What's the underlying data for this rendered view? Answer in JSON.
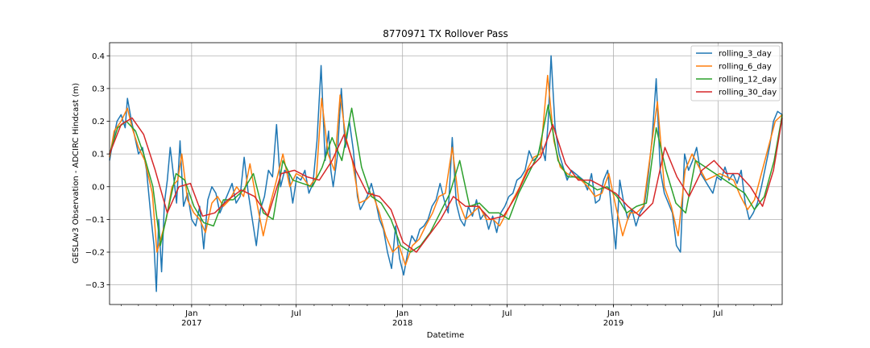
{
  "chart_data": {
    "type": "line",
    "title": "8770971 TX Rollover Pass",
    "xlabel": "Datetime",
    "ylabel": "GESLAv3 Observation - ADCIRC Hindcast (m)",
    "x_range": [
      "2016-08-12",
      "2019-10-20"
    ],
    "ylim": [
      -0.36,
      0.44
    ],
    "y_ticks": [
      -0.3,
      -0.2,
      -0.1,
      0.0,
      0.1,
      0.2,
      0.3,
      0.4
    ],
    "y_tick_labels": [
      "−0.3",
      "−0.2",
      "−0.1",
      "0.0",
      "0.1",
      "0.2",
      "0.3",
      "0.4"
    ],
    "x_major_ticks": [
      {
        "date": "2017-01-01",
        "label": "Jan",
        "year": "2017"
      },
      {
        "date": "2017-07-01",
        "label": "Jul",
        "year": ""
      },
      {
        "date": "2018-01-01",
        "label": "Jan",
        "year": "2018"
      },
      {
        "date": "2018-07-01",
        "label": "Jul",
        "year": ""
      },
      {
        "date": "2019-01-01",
        "label": "Jan",
        "year": "2019"
      },
      {
        "date": "2019-07-01",
        "label": "Jul",
        "year": ""
      }
    ],
    "grid": true,
    "legend_position": "top-right",
    "colors": {
      "rolling_3_day": "#1f77b4",
      "rolling_6_day": "#ff7f0e",
      "rolling_12_day": "#2ca02c",
      "rolling_30_day": "#d62728"
    },
    "series": [
      {
        "name": "rolling_3_day",
        "x": [
          "2016-08-12",
          "2016-08-18",
          "2016-08-25",
          "2016-09-01",
          "2016-09-08",
          "2016-09-12",
          "2016-09-18",
          "2016-09-25",
          "2016-10-01",
          "2016-10-08",
          "2016-10-15",
          "2016-10-22",
          "2016-10-28",
          "2016-11-01",
          "2016-11-05",
          "2016-11-10",
          "2016-11-15",
          "2016-11-20",
          "2016-11-25",
          "2016-12-01",
          "2016-12-06",
          "2016-12-12",
          "2016-12-18",
          "2016-12-25",
          "2017-01-01",
          "2017-01-08",
          "2017-01-15",
          "2017-01-22",
          "2017-01-29",
          "2017-02-05",
          "2017-02-12",
          "2017-02-19",
          "2017-02-26",
          "2017-03-05",
          "2017-03-12",
          "2017-03-19",
          "2017-03-26",
          "2017-04-02",
          "2017-04-09",
          "2017-04-16",
          "2017-04-23",
          "2017-04-30",
          "2017-05-07",
          "2017-05-14",
          "2017-05-21",
          "2017-05-28",
          "2017-06-04",
          "2017-06-11",
          "2017-06-18",
          "2017-06-25",
          "2017-07-02",
          "2017-07-09",
          "2017-07-16",
          "2017-07-23",
          "2017-07-30",
          "2017-08-06",
          "2017-08-13",
          "2017-08-20",
          "2017-08-26",
          "2017-08-30",
          "2017-09-03",
          "2017-09-10",
          "2017-09-17",
          "2017-09-24",
          "2017-10-01",
          "2017-10-08",
          "2017-10-15",
          "2017-10-20",
          "2017-10-26",
          "2017-11-01",
          "2017-11-08",
          "2017-11-15",
          "2017-11-22",
          "2017-11-29",
          "2017-12-06",
          "2017-12-13",
          "2017-12-20",
          "2017-12-27",
          "2018-01-03",
          "2018-01-10",
          "2018-01-17",
          "2018-01-24",
          "2018-01-31",
          "2018-02-07",
          "2018-02-14",
          "2018-02-21",
          "2018-02-28",
          "2018-03-07",
          "2018-03-14",
          "2018-03-21",
          "2018-03-28",
          "2018-04-04",
          "2018-04-11",
          "2018-04-18",
          "2018-04-25",
          "2018-05-02",
          "2018-05-09",
          "2018-05-16",
          "2018-05-23",
          "2018-05-30",
          "2018-06-06",
          "2018-06-13",
          "2018-06-20",
          "2018-06-27",
          "2018-07-04",
          "2018-07-11",
          "2018-07-18",
          "2018-07-25",
          "2018-08-01",
          "2018-08-08",
          "2018-08-15",
          "2018-08-22",
          "2018-08-29",
          "2018-09-05",
          "2018-09-10",
          "2018-09-15",
          "2018-09-22",
          "2018-09-29",
          "2018-10-06",
          "2018-10-13",
          "2018-10-20",
          "2018-10-27",
          "2018-11-03",
          "2018-11-10",
          "2018-11-17",
          "2018-11-24",
          "2018-12-01",
          "2018-12-08",
          "2018-12-15",
          "2018-12-22",
          "2018-12-29",
          "2019-01-05",
          "2019-01-12",
          "2019-01-19",
          "2019-01-26",
          "2019-02-02",
          "2019-02-09",
          "2019-02-16",
          "2019-02-23",
          "2019-03-02",
          "2019-03-09",
          "2019-03-16",
          "2019-03-23",
          "2019-03-30",
          "2019-04-06",
          "2019-04-13",
          "2019-04-20",
          "2019-04-27",
          "2019-05-04",
          "2019-05-11",
          "2019-05-18",
          "2019-05-25",
          "2019-06-01",
          "2019-06-08",
          "2019-06-15",
          "2019-06-22",
          "2019-06-29",
          "2019-07-06",
          "2019-07-13",
          "2019-07-20",
          "2019-07-27",
          "2019-08-03",
          "2019-08-10",
          "2019-08-17",
          "2019-08-24",
          "2019-08-31",
          "2019-09-07",
          "2019-09-14",
          "2019-09-21",
          "2019-09-28",
          "2019-10-05",
          "2019-10-12",
          "2019-10-20"
        ],
        "y": [
          0.08,
          0.14,
          0.2,
          0.22,
          0.18,
          0.27,
          0.21,
          0.15,
          0.1,
          0.12,
          0.05,
          -0.08,
          -0.18,
          -0.32,
          -0.1,
          -0.26,
          -0.05,
          0.02,
          0.12,
          0.03,
          -0.05,
          0.14,
          -0.06,
          -0.02,
          -0.1,
          -0.12,
          -0.06,
          -0.19,
          -0.04,
          0.0,
          -0.02,
          -0.08,
          -0.05,
          -0.02,
          0.01,
          -0.05,
          -0.03,
          0.09,
          -0.02,
          -0.1,
          -0.18,
          -0.07,
          -0.03,
          0.05,
          0.03,
          0.19,
          0.0,
          0.05,
          0.04,
          -0.05,
          0.03,
          0.02,
          0.05,
          -0.02,
          0.01,
          0.14,
          0.37,
          0.08,
          0.17,
          0.05,
          0.0,
          0.09,
          0.3,
          0.12,
          0.2,
          0.11,
          -0.03,
          -0.07,
          -0.05,
          -0.03,
          0.01,
          -0.04,
          -0.1,
          -0.13,
          -0.2,
          -0.25,
          -0.12,
          -0.22,
          -0.27,
          -0.2,
          -0.15,
          -0.17,
          -0.13,
          -0.12,
          -0.1,
          -0.06,
          -0.04,
          0.01,
          -0.04,
          -0.08,
          0.15,
          -0.05,
          -0.1,
          -0.12,
          -0.06,
          -0.09,
          -0.04,
          -0.1,
          -0.08,
          -0.13,
          -0.09,
          -0.14,
          -0.08,
          -0.06,
          -0.03,
          -0.02,
          0.02,
          0.03,
          0.05,
          0.11,
          0.08,
          0.09,
          0.13,
          0.08,
          0.2,
          0.4,
          0.18,
          0.1,
          0.06,
          0.02,
          0.05,
          0.04,
          0.03,
          0.02,
          -0.01,
          0.04,
          -0.05,
          -0.04,
          0.02,
          0.05,
          -0.08,
          -0.19,
          0.02,
          -0.05,
          -0.1,
          -0.07,
          -0.12,
          -0.08,
          -0.06,
          0.03,
          0.15,
          0.33,
          0.05,
          -0.02,
          -0.05,
          -0.08,
          -0.18,
          -0.2,
          0.1,
          0.05,
          0.08,
          0.12,
          0.04,
          0.02,
          0.0,
          -0.02,
          0.03,
          0.02,
          0.06,
          0.02,
          0.04,
          0.01,
          0.05,
          -0.05,
          -0.1,
          -0.08,
          -0.05,
          0.0,
          0.06,
          0.12,
          0.2,
          0.23,
          0.22
        ]
      },
      {
        "name": "rolling_6_day",
        "x": [
          "2016-08-12",
          "2016-08-20",
          "2016-09-01",
          "2016-09-12",
          "2016-09-20",
          "2016-10-01",
          "2016-10-12",
          "2016-10-25",
          "2016-11-02",
          "2016-11-10",
          "2016-11-18",
          "2016-11-28",
          "2016-12-08",
          "2016-12-15",
          "2016-12-25",
          "2017-01-05",
          "2017-01-15",
          "2017-01-25",
          "2017-02-05",
          "2017-02-15",
          "2017-02-25",
          "2017-03-08",
          "2017-03-20",
          "2017-04-01",
          "2017-04-12",
          "2017-04-24",
          "2017-05-05",
          "2017-05-16",
          "2017-05-28",
          "2017-06-08",
          "2017-06-20",
          "2017-07-01",
          "2017-07-12",
          "2017-07-24",
          "2017-08-05",
          "2017-08-14",
          "2017-08-25",
          "2017-09-05",
          "2017-09-15",
          "2017-09-25",
          "2017-10-06",
          "2017-10-18",
          "2017-10-30",
          "2017-11-10",
          "2017-11-22",
          "2017-12-03",
          "2017-12-15",
          "2017-12-26",
          "2018-01-06",
          "2018-01-18",
          "2018-01-30",
          "2018-02-10",
          "2018-02-22",
          "2018-03-05",
          "2018-03-16",
          "2018-03-28",
          "2018-04-09",
          "2018-04-20",
          "2018-05-02",
          "2018-05-14",
          "2018-05-26",
          "2018-06-07",
          "2018-06-18",
          "2018-06-30",
          "2018-07-11",
          "2018-07-23",
          "2018-08-04",
          "2018-08-16",
          "2018-08-28",
          "2018-09-09",
          "2018-09-20",
          "2018-10-01",
          "2018-10-13",
          "2018-10-25",
          "2018-11-06",
          "2018-11-18",
          "2018-11-30",
          "2018-12-12",
          "2018-12-24",
          "2019-01-05",
          "2019-01-17",
          "2019-01-29",
          "2019-02-10",
          "2019-02-22",
          "2019-03-06",
          "2019-03-18",
          "2019-03-30",
          "2019-04-11",
          "2019-04-23",
          "2019-05-05",
          "2019-05-17",
          "2019-05-29",
          "2019-06-10",
          "2019-06-22",
          "2019-07-04",
          "2019-07-16",
          "2019-07-28",
          "2019-08-09",
          "2019-08-21",
          "2019-09-02",
          "2019-09-14",
          "2019-09-26",
          "2019-10-08",
          "2019-10-20"
        ],
        "y": [
          0.09,
          0.17,
          0.2,
          0.24,
          0.18,
          0.12,
          0.08,
          -0.02,
          -0.2,
          -0.15,
          -0.1,
          0.0,
          0.02,
          0.1,
          -0.04,
          -0.08,
          -0.1,
          -0.14,
          -0.05,
          -0.03,
          -0.06,
          -0.04,
          0.0,
          -0.03,
          0.07,
          -0.05,
          -0.15,
          -0.06,
          0.02,
          0.1,
          0.0,
          0.04,
          0.03,
          0.0,
          0.03,
          0.27,
          0.1,
          0.05,
          0.28,
          0.15,
          0.08,
          -0.05,
          -0.04,
          -0.02,
          -0.08,
          -0.15,
          -0.2,
          -0.18,
          -0.24,
          -0.18,
          -0.16,
          -0.12,
          -0.08,
          -0.03,
          -0.02,
          0.12,
          -0.05,
          -0.1,
          -0.08,
          -0.06,
          -0.1,
          -0.1,
          -0.12,
          -0.08,
          -0.04,
          0.0,
          0.05,
          0.09,
          0.1,
          0.34,
          0.14,
          0.06,
          0.04,
          0.03,
          0.02,
          0.0,
          -0.03,
          -0.02,
          0.04,
          -0.06,
          -0.15,
          -0.08,
          -0.08,
          -0.06,
          0.1,
          0.26,
          0.0,
          -0.06,
          -0.15,
          0.05,
          0.1,
          0.06,
          0.02,
          0.03,
          0.04,
          0.03,
          0.02,
          -0.03,
          -0.07,
          -0.04,
          0.04,
          0.12,
          0.2,
          0.22
        ]
      },
      {
        "name": "rolling_12_day",
        "x": [
          "2016-08-12",
          "2016-08-26",
          "2016-09-10",
          "2016-09-26",
          "2016-10-10",
          "2016-10-26",
          "2016-11-08",
          "2016-11-20",
          "2016-12-05",
          "2016-12-20",
          "2017-01-05",
          "2017-01-22",
          "2017-02-08",
          "2017-02-25",
          "2017-03-14",
          "2017-04-01",
          "2017-04-18",
          "2017-05-05",
          "2017-05-22",
          "2017-06-08",
          "2017-06-25",
          "2017-07-12",
          "2017-07-29",
          "2017-08-15",
          "2017-09-01",
          "2017-09-18",
          "2017-10-05",
          "2017-10-22",
          "2017-11-08",
          "2017-11-25",
          "2017-12-12",
          "2017-12-29",
          "2018-01-15",
          "2018-02-01",
          "2018-02-18",
          "2018-03-07",
          "2018-03-24",
          "2018-04-10",
          "2018-04-27",
          "2018-05-14",
          "2018-05-31",
          "2018-06-17",
          "2018-07-04",
          "2018-07-21",
          "2018-08-07",
          "2018-08-24",
          "2018-09-10",
          "2018-09-27",
          "2018-10-14",
          "2018-10-31",
          "2018-11-17",
          "2018-12-04",
          "2018-12-21",
          "2019-01-07",
          "2019-01-24",
          "2019-02-10",
          "2019-02-27",
          "2019-03-16",
          "2019-04-02",
          "2019-04-19",
          "2019-05-06",
          "2019-05-23",
          "2019-06-09",
          "2019-06-26",
          "2019-07-13",
          "2019-07-30",
          "2019-08-16",
          "2019-09-02",
          "2019-09-19",
          "2019-10-06",
          "2019-10-20"
        ],
        "y": [
          0.1,
          0.18,
          0.2,
          0.17,
          0.1,
          0.0,
          -0.18,
          -0.08,
          0.04,
          0.02,
          -0.06,
          -0.11,
          -0.12,
          -0.04,
          -0.04,
          -0.01,
          0.04,
          -0.08,
          -0.1,
          0.08,
          0.02,
          0.01,
          0.0,
          0.06,
          0.15,
          0.08,
          0.24,
          0.06,
          -0.03,
          -0.05,
          -0.1,
          -0.18,
          -0.2,
          -0.18,
          -0.14,
          -0.08,
          -0.02,
          0.08,
          -0.06,
          -0.05,
          -0.08,
          -0.08,
          -0.1,
          -0.02,
          0.04,
          0.1,
          0.25,
          0.08,
          0.03,
          0.03,
          0.01,
          -0.01,
          0.0,
          -0.03,
          -0.08,
          -0.06,
          -0.05,
          0.18,
          0.05,
          -0.05,
          -0.08,
          0.08,
          0.06,
          0.04,
          0.02,
          0.0,
          -0.02,
          -0.07,
          -0.03,
          0.08,
          0.22
        ]
      },
      {
        "name": "rolling_30_day",
        "x": [
          "2016-08-12",
          "2016-09-01",
          "2016-09-20",
          "2016-10-10",
          "2016-10-30",
          "2016-11-20",
          "2016-12-10",
          "2016-12-30",
          "2017-01-20",
          "2017-02-10",
          "2017-03-05",
          "2017-03-28",
          "2017-04-20",
          "2017-05-13",
          "2017-06-05",
          "2017-06-28",
          "2017-07-20",
          "2017-08-10",
          "2017-09-01",
          "2017-09-22",
          "2017-10-12",
          "2017-11-01",
          "2017-11-22",
          "2017-12-12",
          "2018-01-02",
          "2018-01-25",
          "2018-02-15",
          "2018-03-08",
          "2018-03-30",
          "2018-04-20",
          "2018-05-12",
          "2018-06-02",
          "2018-06-25",
          "2018-07-16",
          "2018-08-06",
          "2018-08-28",
          "2018-09-18",
          "2018-10-10",
          "2018-11-01",
          "2018-11-22",
          "2018-12-14",
          "2019-01-05",
          "2019-01-26",
          "2019-02-16",
          "2019-03-10",
          "2019-03-31",
          "2019-04-21",
          "2019-05-12",
          "2019-06-03",
          "2019-06-24",
          "2019-07-15",
          "2019-08-05",
          "2019-08-26",
          "2019-09-16",
          "2019-10-05",
          "2019-10-20"
        ],
        "y": [
          0.1,
          0.19,
          0.21,
          0.16,
          0.05,
          -0.08,
          0.0,
          0.01,
          -0.09,
          -0.08,
          -0.04,
          -0.01,
          -0.03,
          -0.09,
          0.04,
          0.05,
          0.03,
          0.02,
          0.08,
          0.16,
          0.05,
          -0.02,
          -0.03,
          -0.07,
          -0.17,
          -0.2,
          -0.15,
          -0.1,
          -0.03,
          -0.06,
          -0.06,
          -0.1,
          -0.09,
          -0.03,
          0.05,
          0.09,
          0.19,
          0.07,
          0.02,
          0.02,
          0.0,
          -0.02,
          -0.06,
          -0.09,
          -0.05,
          0.12,
          0.03,
          -0.03,
          0.05,
          0.08,
          0.04,
          0.04,
          0.0,
          -0.06,
          0.05,
          0.21
        ]
      }
    ]
  }
}
